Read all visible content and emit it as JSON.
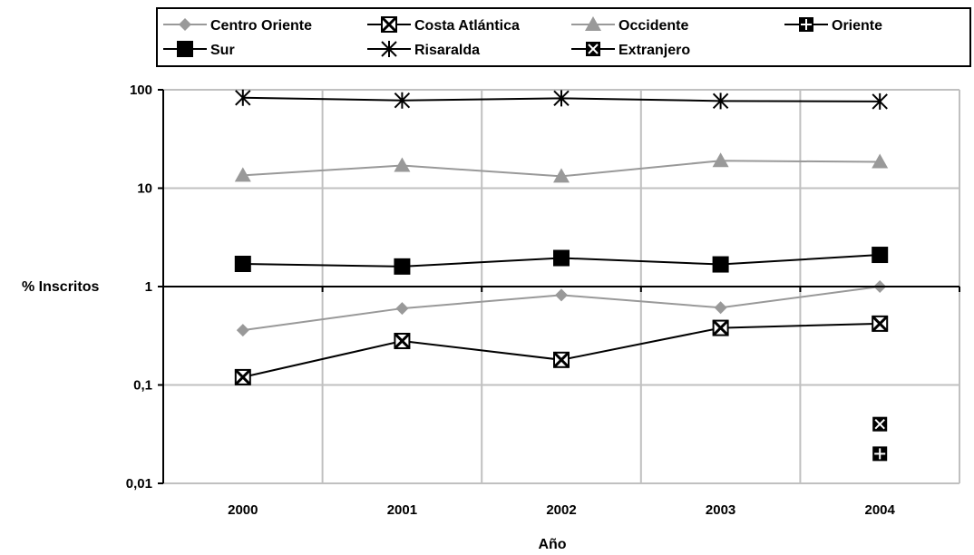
{
  "chart_data": {
    "type": "line",
    "title": "",
    "xlabel": "Año",
    "ylabel": "% Inscritos",
    "categories": [
      "2000",
      "2001",
      "2002",
      "2003",
      "2004"
    ],
    "y_scale": "log",
    "ylim": [
      0.01,
      100
    ],
    "y_ticks": [
      {
        "value": 0.01,
        "label": "0,01"
      },
      {
        "value": 0.1,
        "label": "0,1"
      },
      {
        "value": 1,
        "label": "1"
      },
      {
        "value": 10,
        "label": "10"
      },
      {
        "value": 100,
        "label": "100"
      }
    ],
    "grid": true,
    "legend_position": "top",
    "series": [
      {
        "name": "Centro Oriente",
        "color": "#999999",
        "marker": "diamond",
        "values": [
          0.36,
          0.6,
          0.82,
          0.61,
          1.0
        ]
      },
      {
        "name": "Costa Atlántica",
        "color": "#000000",
        "marker": "x-box",
        "values": [
          0.12,
          0.28,
          0.18,
          0.38,
          0.42
        ]
      },
      {
        "name": "Occidente",
        "color": "#999999",
        "marker": "triangle",
        "values": [
          13.5,
          17,
          13.2,
          19,
          18.5
        ]
      },
      {
        "name": "Oriente",
        "color": "#000000",
        "marker": "plus-box",
        "values": [
          null,
          null,
          null,
          null,
          0.02
        ]
      },
      {
        "name": "Sur",
        "color": "#000000",
        "marker": "square",
        "values": [
          1.7,
          1.6,
          1.95,
          1.68,
          2.1
        ]
      },
      {
        "name": "Risaralda",
        "color": "#000000",
        "marker": "asterisk",
        "values": [
          83,
          78,
          82,
          77,
          76
        ]
      },
      {
        "name": "Extranjero",
        "color": "#000000",
        "marker": "x-box-open",
        "values": [
          null,
          null,
          null,
          null,
          0.04
        ]
      }
    ]
  }
}
